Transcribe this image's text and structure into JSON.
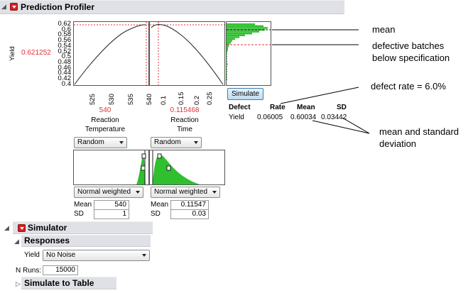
{
  "profiler": {
    "title": "Prediction Profiler",
    "y_label": "Yield",
    "y_current": "0.621252",
    "y_ticks": [
      "0.62",
      "0.6",
      "0.58",
      "0.56",
      "0.54",
      "0.52",
      "0.5",
      "0.48",
      "0.46",
      "0.44",
      "0.42",
      "0.4"
    ],
    "factor1": {
      "ticks": [
        "525",
        "530",
        "535",
        "540"
      ],
      "value": "540",
      "name_line1": "Reaction",
      "name_line2": "Temperature"
    },
    "factor2": {
      "ticks": [
        "0.1",
        "0.15",
        "0.2",
        "0.25"
      ],
      "value": "0.115468",
      "name_line1": "Reaction",
      "name_line2": "Time"
    },
    "factor1_mode": "Random",
    "factor2_mode": "Random",
    "factor1_dist": "Normal weighted",
    "factor2_dist": "Normal weighted",
    "factor1_mean_label": "Mean",
    "factor1_mean": "540",
    "factor1_sd_label": "SD",
    "factor1_sd": "1",
    "factor2_mean_label": "Mean",
    "factor2_mean": "0.11547",
    "factor2_sd_label": "SD",
    "factor2_sd": "0.03",
    "simulate_label": "Simulate",
    "stats": {
      "headers": [
        "Defect",
        "Rate",
        "Mean",
        "SD"
      ],
      "row_label": "Yield",
      "rate": "0.06005",
      "mean": "0.60034",
      "sd": "0.03442"
    }
  },
  "simulator": {
    "title": "Simulator",
    "responses_title": "Responses",
    "yield_label": "Yield",
    "noise_option": "No Noise",
    "nruns_label": "N Runs:",
    "nruns_value": "15000",
    "simulate_to_table": "Simulate to Table"
  },
  "annotations": {
    "mean": "mean",
    "defective_line1": "defective batches",
    "defective_line2": "below specification",
    "defect_rate": "defect rate = 6.0%",
    "mean_sd_line1": "mean and standard",
    "mean_sd_line2": "deviation"
  },
  "colors": {
    "accent_red": "#e0303a",
    "histogram_green": "#2fbf2f",
    "header_bar": "#dfe1e6"
  }
}
